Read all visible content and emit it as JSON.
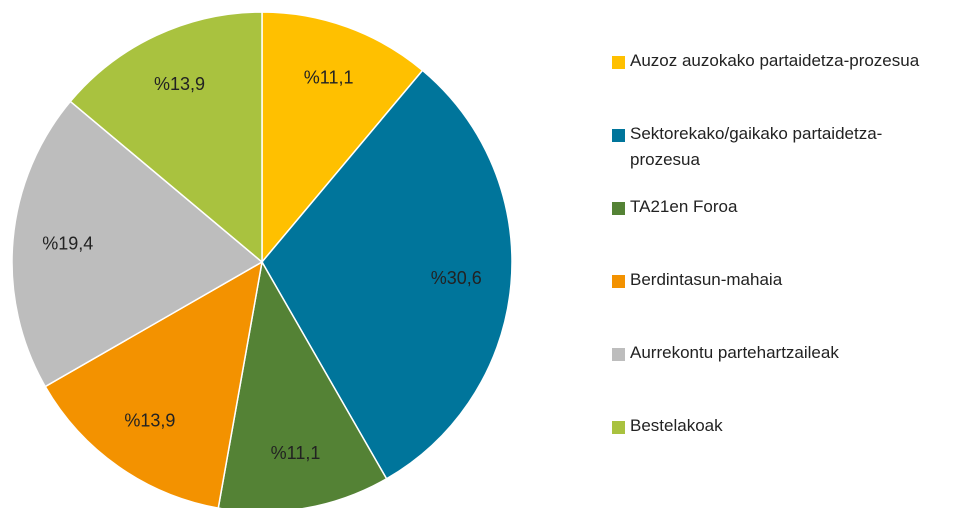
{
  "chart_data": {
    "type": "pie",
    "categories": [
      "Auzoz auzokako partaidetza-prozesua",
      "Sektorekako/gaikako partaidetza-prozesua",
      "TA21en Foroa",
      "Berdintasun-mahaia",
      "Aurrekontu partehartzaileak",
      "Bestelakoak"
    ],
    "values": [
      11.1,
      30.6,
      11.1,
      13.9,
      19.4,
      13.9
    ],
    "value_labels": [
      "%11,1",
      "%30,6",
      "%11,1",
      "%13,9",
      "%19,4",
      "%13,9"
    ],
    "colors": [
      "#ffc000",
      "#00759b",
      "#548235",
      "#f39200",
      "#bdbdbd",
      "#a9c23f"
    ],
    "legend": "right"
  }
}
